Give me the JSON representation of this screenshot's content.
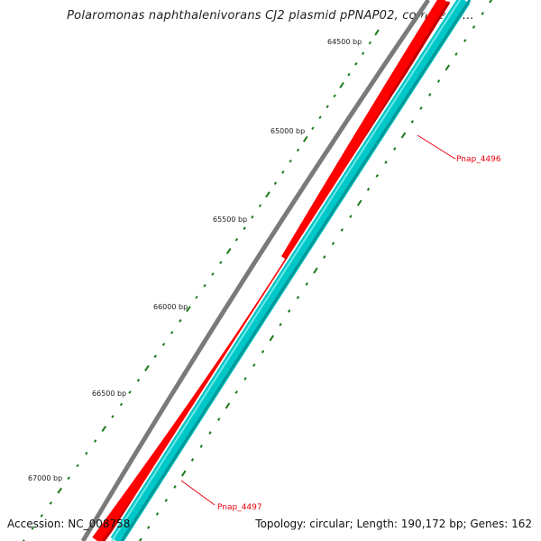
{
  "title": "Polaromonas naphthalenivorans CJ2 plasmid pPNAP02, complete ...",
  "footer": {
    "accession": "Accession: NC_008758",
    "summary": "Topology: circular; Length: 190,172 bp; Genes: 162"
  },
  "ruler": {
    "labels": [
      "64500 bp",
      "65000 bp",
      "65500 bp",
      "66000 bp",
      "66500 bp",
      "67000 bp"
    ]
  },
  "genes": [
    {
      "name": "Pnap_4496",
      "strand": "reverse",
      "color": "#00c8c8"
    },
    {
      "name": "Pnap_4497",
      "strand": "forward",
      "color": "#ff0000"
    }
  ],
  "colors": {
    "backbone": "#7a7a7a",
    "forward": "#ff0000",
    "reverse": "#00c8c8",
    "tick": "#1a7a1a",
    "label": "#e8000b"
  }
}
